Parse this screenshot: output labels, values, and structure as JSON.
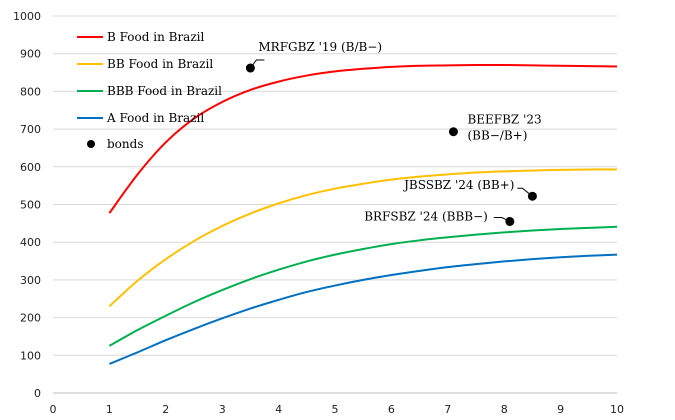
{
  "chart_data": {
    "type": "line",
    "xlim": [
      0,
      10
    ],
    "ylim": [
      0,
      1000
    ],
    "x_ticks": [
      0,
      1,
      2,
      3,
      4,
      5,
      6,
      7,
      8,
      9,
      10
    ],
    "y_ticks": [
      0,
      100,
      200,
      300,
      400,
      500,
      600,
      700,
      800,
      900,
      1000
    ],
    "grid": "horizontal",
    "legend_position": "top-left",
    "x": [
      1,
      1.5,
      2,
      2.5,
      3,
      3.5,
      4,
      4.5,
      5,
      5.5,
      6,
      6.5,
      7,
      7.5,
      8,
      8.5,
      9,
      9.5,
      10
    ],
    "series": [
      {
        "name": "B Food in Brazil",
        "color": "#ff0000",
        "values": [
          477,
          580,
          665,
          728,
          772,
          804,
          826,
          842,
          853,
          860,
          865,
          868,
          869,
          870,
          870,
          869,
          868,
          867,
          866
        ]
      },
      {
        "name": "BB Food in Brazil",
        "color": "#ffc000",
        "values": [
          230,
          298,
          355,
          403,
          443,
          476,
          503,
          525,
          542,
          555,
          566,
          574,
          580,
          585,
          588,
          590,
          592,
          593,
          593
        ]
      },
      {
        "name": "BBB Food in Brazil",
        "color": "#00b050",
        "values": [
          125,
          167,
          205,
          241,
          273,
          302,
          327,
          349,
          367,
          382,
          395,
          405,
          413,
          420,
          426,
          431,
          435,
          438,
          441
        ]
      },
      {
        "name": "A Food in Brazil",
        "color": "#0070c0",
        "values": [
          77,
          108,
          140,
          170,
          198,
          224,
          247,
          268,
          285,
          300,
          313,
          324,
          334,
          342,
          349,
          355,
          360,
          364,
          367
        ]
      }
    ],
    "bonds": {
      "name": "bonds",
      "color": "#000000",
      "points": [
        {
          "label": "MRFGBZ '19 (B/B−)",
          "x": 3.5,
          "y": 862
        },
        {
          "label": "BEEFBZ '23",
          "label2": "(BB−/B+)",
          "x": 7.1,
          "y": 693
        },
        {
          "label": "JBSSBZ '24 (BB+)",
          "x": 8.5,
          "y": 522
        },
        {
          "label": "BRFSBZ '24 (BBB−)",
          "x": 8.1,
          "y": 455
        }
      ]
    }
  }
}
